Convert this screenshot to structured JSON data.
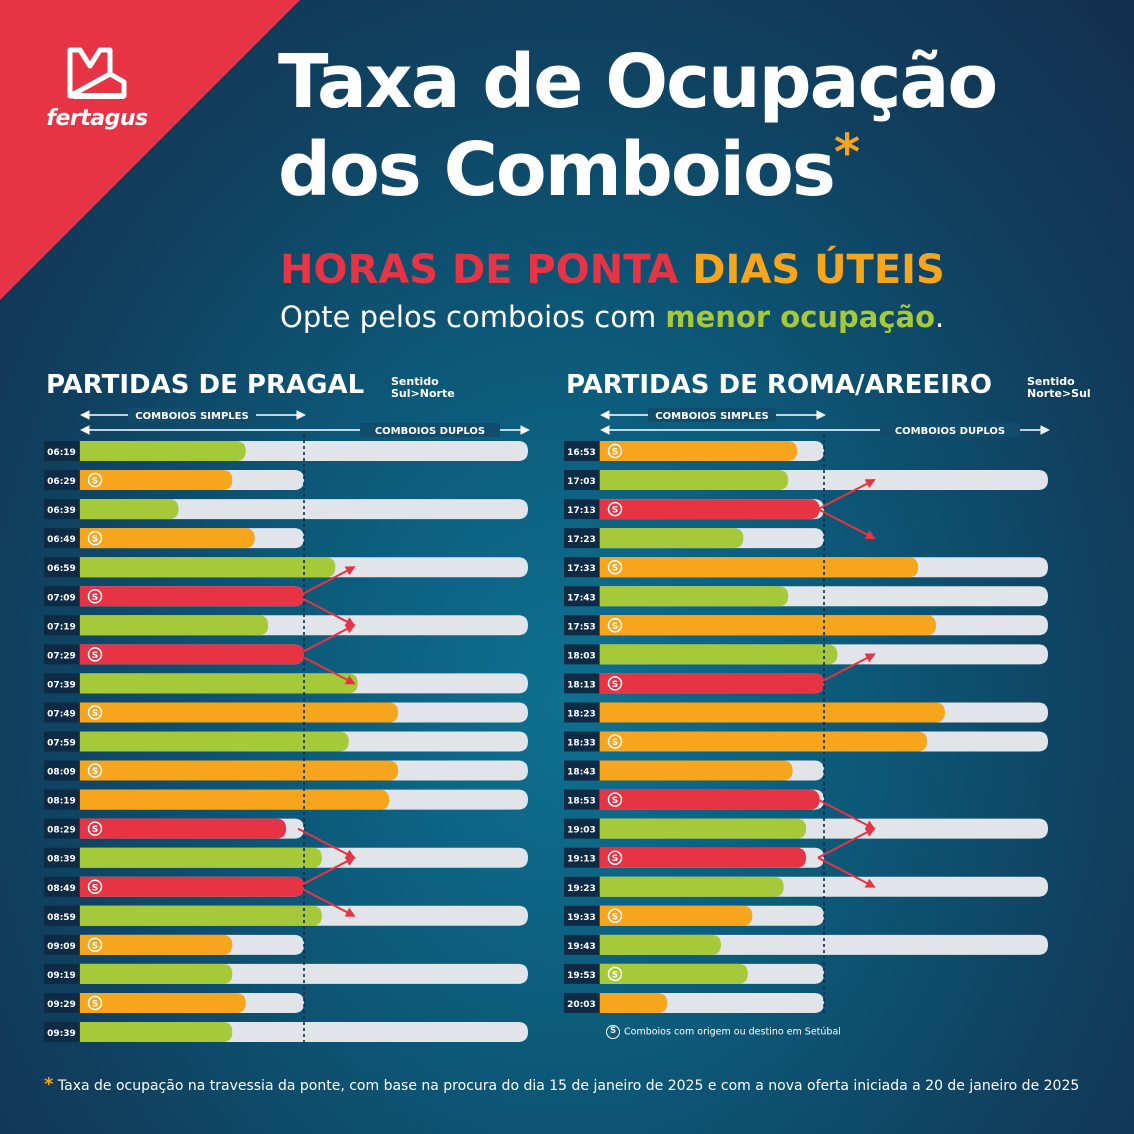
{
  "brand": {
    "logo_text": "fertagus"
  },
  "header": {
    "title_line1": "Taxa de Ocupação",
    "title_line2": "dos Comboios",
    "asterisk": "*",
    "subtitle_red": "HORAS DE PONTA",
    "subtitle_orange": "DIAS ÚTEIS",
    "tagline_start": "Opte pelos comboios com ",
    "tagline_highlight": "menor ocupação",
    "tagline_end": "."
  },
  "colors": {
    "green": "#a6c939",
    "orange": "#f7a51d",
    "red": "#e63444",
    "track": "#e1e5ea",
    "accent_bg": "#e63444"
  },
  "legend_text": "Comboios com origem ou destino em Setúbal",
  "footnote": {
    "star": "*",
    "text": "Taxa de ocupação na travessia da ponte, com base na procura do dia 15 de janeiro de 2025 e com a nova oferta iniciada a 20 de janeiro de 2025"
  },
  "chart_data": [
    {
      "type": "bar",
      "title": "PARTIDAS DE PRAGAL",
      "direction_label": "Sentido",
      "direction_from": "Sul",
      "direction_to": "Norte",
      "simple_label": "COMBOIOS SIMPLES",
      "double_label": "COMBOIOS DUPLOS",
      "value_scale": "fraction of double-train capacity (1.0 = full double train; 0.5 = full single train)",
      "trains": [
        {
          "time": "06:19",
          "fill": 0.37,
          "level": "green",
          "setubal": false,
          "capacity": "double"
        },
        {
          "time": "06:29",
          "fill": 0.34,
          "level": "orange",
          "setubal": true,
          "capacity": "single"
        },
        {
          "time": "06:39",
          "fill": 0.22,
          "level": "green",
          "setubal": false,
          "capacity": "double"
        },
        {
          "time": "06:49",
          "fill": 0.39,
          "level": "orange",
          "setubal": true,
          "capacity": "single"
        },
        {
          "time": "06:59",
          "fill": 0.57,
          "level": "green",
          "setubal": false,
          "capacity": "double"
        },
        {
          "time": "07:09",
          "fill": 0.5,
          "level": "red",
          "setubal": true,
          "capacity": "single"
        },
        {
          "time": "07:19",
          "fill": 0.42,
          "level": "green",
          "setubal": false,
          "capacity": "double"
        },
        {
          "time": "07:29",
          "fill": 0.5,
          "level": "red",
          "setubal": true,
          "capacity": "single"
        },
        {
          "time": "07:39",
          "fill": 0.62,
          "level": "green",
          "setubal": false,
          "capacity": "double"
        },
        {
          "time": "07:49",
          "fill": 0.71,
          "level": "orange",
          "setubal": true,
          "capacity": "double"
        },
        {
          "time": "07:59",
          "fill": 0.6,
          "level": "green",
          "setubal": false,
          "capacity": "double"
        },
        {
          "time": "08:09",
          "fill": 0.71,
          "level": "orange",
          "setubal": true,
          "capacity": "double"
        },
        {
          "time": "08:19",
          "fill": 0.69,
          "level": "orange",
          "setubal": false,
          "capacity": "double"
        },
        {
          "time": "08:29",
          "fill": 0.46,
          "level": "red",
          "setubal": true,
          "capacity": "single"
        },
        {
          "time": "08:39",
          "fill": 0.54,
          "level": "green",
          "setubal": false,
          "capacity": "double"
        },
        {
          "time": "08:49",
          "fill": 0.5,
          "level": "red",
          "setubal": true,
          "capacity": "single"
        },
        {
          "time": "08:59",
          "fill": 0.54,
          "level": "green",
          "setubal": false,
          "capacity": "double"
        },
        {
          "time": "09:09",
          "fill": 0.34,
          "level": "orange",
          "setubal": true,
          "capacity": "single"
        },
        {
          "time": "09:19",
          "fill": 0.34,
          "level": "green",
          "setubal": false,
          "capacity": "double"
        },
        {
          "time": "09:29",
          "fill": 0.37,
          "level": "orange",
          "setubal": true,
          "capacity": "single"
        },
        {
          "time": "09:39",
          "fill": 0.34,
          "level": "green",
          "setubal": false,
          "capacity": "double"
        }
      ],
      "transfers": [
        {
          "from": "07:09",
          "to": "06:59"
        },
        {
          "from": "07:09",
          "to": "07:19"
        },
        {
          "from": "07:29",
          "to": "07:19"
        },
        {
          "from": "07:29",
          "to": "07:39"
        },
        {
          "from": "08:29",
          "to": "08:39"
        },
        {
          "from": "08:49",
          "to": "08:39"
        },
        {
          "from": "08:49",
          "to": "08:59"
        }
      ]
    },
    {
      "type": "bar",
      "title": "PARTIDAS DE ROMA/AREEIRO",
      "direction_label": "Sentido",
      "direction_from": "Norte",
      "direction_to": "Sul",
      "simple_label": "COMBOIOS SIMPLES",
      "double_label": "COMBOIOS DUPLOS",
      "value_scale": "fraction of double-train capacity (1.0 = full double train; 0.5 = full single train)",
      "trains": [
        {
          "time": "16:53",
          "fill": 0.44,
          "level": "orange",
          "setubal": true,
          "capacity": "single"
        },
        {
          "time": "17:03",
          "fill": 0.42,
          "level": "green",
          "setubal": false,
          "capacity": "double"
        },
        {
          "time": "17:13",
          "fill": 0.49,
          "level": "red",
          "setubal": true,
          "capacity": "single"
        },
        {
          "time": "17:23",
          "fill": 0.32,
          "level": "green",
          "setubal": false,
          "capacity": "single"
        },
        {
          "time": "17:33",
          "fill": 0.71,
          "level": "orange",
          "setubal": true,
          "capacity": "double"
        },
        {
          "time": "17:43",
          "fill": 0.42,
          "level": "green",
          "setubal": false,
          "capacity": "double"
        },
        {
          "time": "17:53",
          "fill": 0.75,
          "level": "orange",
          "setubal": true,
          "capacity": "double"
        },
        {
          "time": "18:03",
          "fill": 0.53,
          "level": "green",
          "setubal": false,
          "capacity": "double"
        },
        {
          "time": "18:13",
          "fill": 0.5,
          "level": "red",
          "setubal": true,
          "capacity": "single"
        },
        {
          "time": "18:23",
          "fill": 0.77,
          "level": "orange",
          "setubal": false,
          "capacity": "double"
        },
        {
          "time": "18:33",
          "fill": 0.73,
          "level": "orange",
          "setubal": true,
          "capacity": "double"
        },
        {
          "time": "18:43",
          "fill": 0.43,
          "level": "orange",
          "setubal": false,
          "capacity": "single"
        },
        {
          "time": "18:53",
          "fill": 0.49,
          "level": "red",
          "setubal": true,
          "capacity": "single"
        },
        {
          "time": "19:03",
          "fill": 0.46,
          "level": "green",
          "setubal": false,
          "capacity": "double"
        },
        {
          "time": "19:13",
          "fill": 0.46,
          "level": "red",
          "setubal": true,
          "capacity": "single"
        },
        {
          "time": "19:23",
          "fill": 0.41,
          "level": "green",
          "setubal": false,
          "capacity": "double"
        },
        {
          "time": "19:33",
          "fill": 0.34,
          "level": "orange",
          "setubal": true,
          "capacity": "single"
        },
        {
          "time": "19:43",
          "fill": 0.27,
          "level": "green",
          "setubal": false,
          "capacity": "double"
        },
        {
          "time": "19:53",
          "fill": 0.33,
          "level": "green",
          "setubal": true,
          "capacity": "single"
        },
        {
          "time": "20:03",
          "fill": 0.15,
          "level": "orange",
          "setubal": false,
          "capacity": "single"
        }
      ],
      "transfers": [
        {
          "from": "17:13",
          "to": "17:03"
        },
        {
          "from": "17:13",
          "to": "17:23"
        },
        {
          "from": "18:13",
          "to": "18:03"
        },
        {
          "from": "18:53",
          "to": "19:03"
        },
        {
          "from": "19:13",
          "to": "19:03"
        },
        {
          "from": "19:13",
          "to": "19:23"
        }
      ]
    }
  ]
}
